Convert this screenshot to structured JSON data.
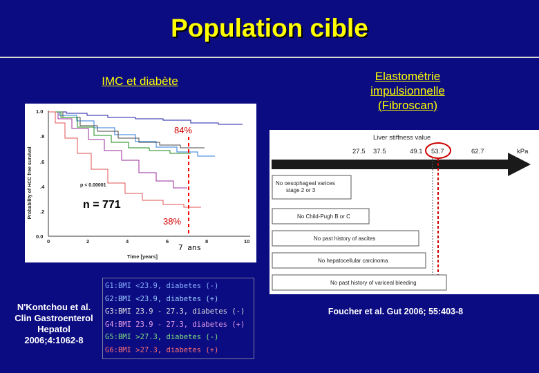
{
  "slide": {
    "title": "Population cible",
    "left_heading": "IMC et diabète",
    "right_heading": "Elastométrie impulsionnelle (Fibroscan)"
  },
  "survival_plot": {
    "y_axis_label": "Probability of HCC free survival",
    "x_axis_label": "Time [years]",
    "y_ticks": [
      "1.0",
      ".8",
      ".6",
      ".4",
      ".2",
      "0.0"
    ],
    "x_ticks": [
      "0",
      "2",
      "4",
      "6",
      "8",
      "10"
    ],
    "p_value": "p < 0.00001",
    "n_label": "n = 771",
    "top_annotation": "84%",
    "bottom_annotation": "38%",
    "time_annotation": "7 ans",
    "marker_color": "#ff0000"
  },
  "legend": {
    "items": [
      {
        "text": "G1:BMI <23.9, diabetes (-)",
        "color": "#1d1da8"
      },
      {
        "text": "G2:BMI <23.9, diabetes (+)",
        "color": "#2a7ad8"
      },
      {
        "text": "G3:BMI 23.9 - 27.3, diabetes (-)",
        "color": "#4a4a4a"
      },
      {
        "text": "G4:BMI 23.9 - 27.3, diabetes (+)",
        "color": "#9a2a9a"
      },
      {
        "text": "G5:BMI >27.3, diabetes (-)",
        "color": "#1a8a1a"
      },
      {
        "text": "G6:BMI >27.3, diabetes (+)",
        "color": "#c81010"
      }
    ]
  },
  "left_reference": {
    "lines": [
      "N'Kontchou et al.",
      "Clin Gastroenterol",
      "Hepatol",
      "2006;4:1062-8"
    ]
  },
  "fibroscan": {
    "scale_title": "Liver stiffness value",
    "scale_values": [
      "27.5",
      "37.5",
      "49.1",
      "53.7",
      "62.7"
    ],
    "unit": "kPa",
    "highlighted_value": "53.7",
    "criteria": [
      "No oesophageal varices stage 2 or 3",
      "No Child-Pugh B or C",
      "No past history of ascites",
      "No hepatocellular carcinoma",
      "No past history of variceal bleeding"
    ]
  },
  "right_reference": {
    "text": "Foucher et al. Gut 2006; 55:403-8"
  },
  "colors": {
    "background": "#0b0b82",
    "title": "#ffff00",
    "text": "#ffffff",
    "highlight": "#ff0000"
  }
}
